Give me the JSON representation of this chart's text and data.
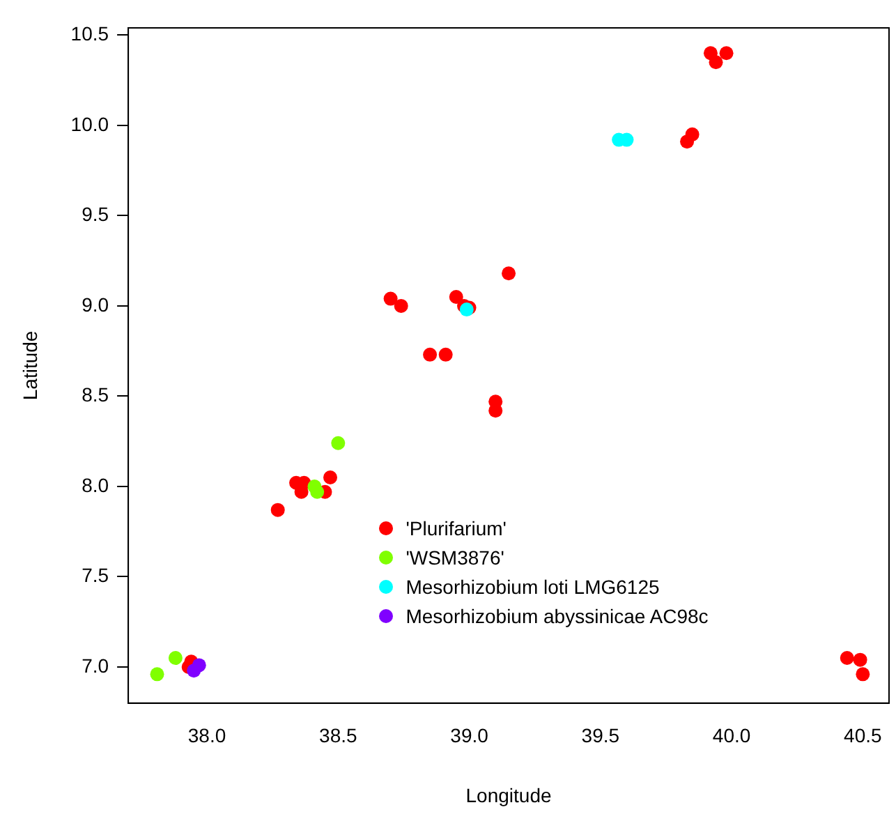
{
  "chart_data": {
    "type": "scatter",
    "xlabel": "Longitude",
    "ylabel": "Latitude",
    "xlim": [
      37.7,
      40.6
    ],
    "ylim": [
      6.8,
      10.54
    ],
    "xticks": [
      {
        "value": 38,
        "label": "38.0"
      },
      38.5,
      {
        "value": 39,
        "label": "39.0"
      },
      39.5,
      {
        "value": 40,
        "label": "40.0"
      },
      40.5
    ],
    "yticks": [
      {
        "value": 7,
        "label": "7.0"
      },
      7.5,
      {
        "value": 8,
        "label": "8.0"
      },
      8.5,
      {
        "value": 9,
        "label": "9.0"
      },
      9.5,
      {
        "value": 10,
        "label": "10.0"
      },
      10.5
    ],
    "grid": false,
    "legend": "bottom",
    "marker": "circle",
    "series": [
      {
        "name": "'Plurifarium'",
        "color": "#ff0000",
        "x": [
          39.92,
          39.98,
          39.94,
          39.85,
          39.83,
          38.7,
          38.74,
          38.95,
          38.98,
          39.0,
          39.15,
          38.85,
          38.91,
          39.1,
          39.1,
          38.27,
          38.34,
          38.37,
          38.36,
          38.47,
          38.45,
          37.94,
          37.93,
          40.44,
          40.49,
          40.5
        ],
        "values": [
          10.4,
          10.4,
          10.35,
          9.95,
          9.91,
          9.04,
          9.0,
          9.05,
          9.0,
          8.99,
          9.18,
          8.73,
          8.73,
          8.47,
          8.42,
          7.87,
          8.02,
          8.02,
          7.97,
          8.05,
          7.97,
          7.03,
          7.0,
          7.05,
          7.04,
          6.96
        ]
      },
      {
        "name": "'WSM3876'",
        "color": "#80ff00",
        "x": [
          38.5,
          38.41,
          38.42,
          37.81,
          37.88
        ],
        "values": [
          8.24,
          8.0,
          7.97,
          6.96,
          7.05
        ]
      },
      {
        "name": "Mesorhizobium loti LMG6125",
        "color": "#00ffff",
        "x": [
          39.57,
          39.6,
          38.99
        ],
        "values": [
          9.92,
          9.92,
          8.98
        ]
      },
      {
        "name": "Mesorhizobium abyssinicae AC98c",
        "color": "#8000ff",
        "x": [
          37.97,
          37.95
        ],
        "values": [
          7.01,
          6.98
        ]
      }
    ]
  }
}
